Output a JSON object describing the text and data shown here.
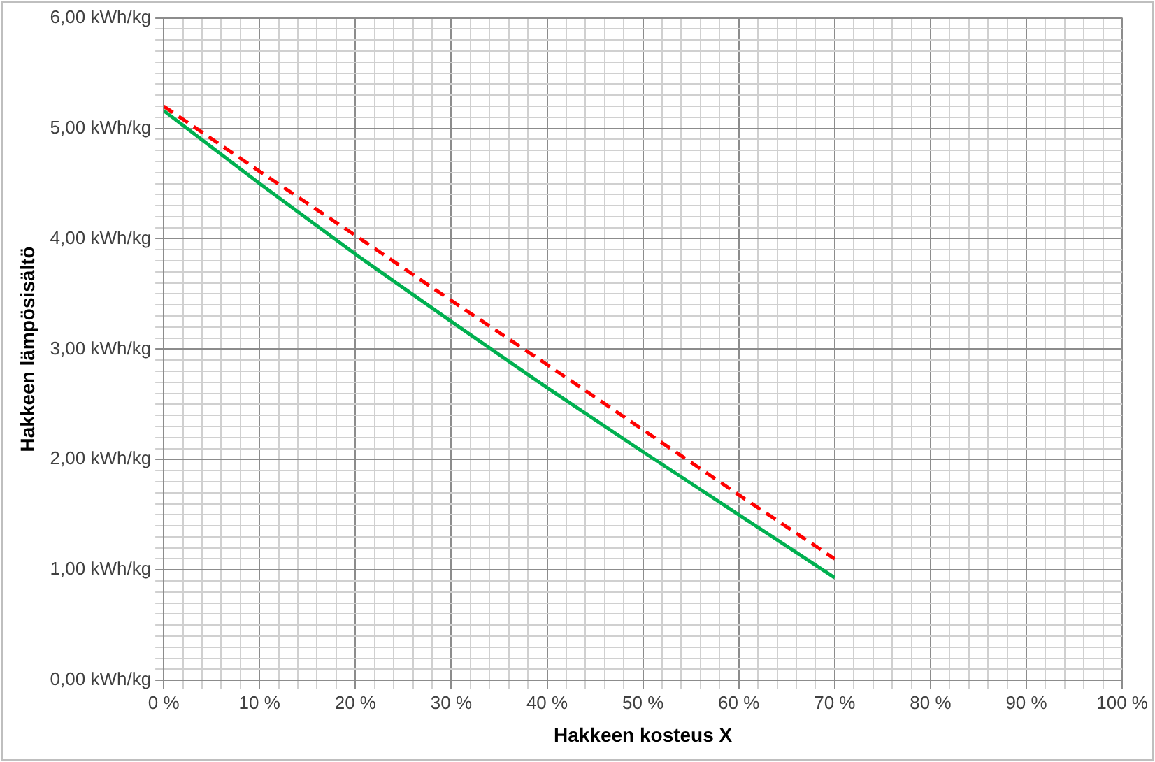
{
  "chart_data": {
    "type": "line",
    "xlabel": "Hakkeen kosteus X",
    "ylabel": "Hakkeen lämpösisältö",
    "x": [
      0,
      10,
      20,
      30,
      40,
      50,
      60,
      70
    ],
    "series": [
      {
        "color": "#ff0000",
        "line_style": "dashed",
        "values": [
          5.2,
          4.61,
          4.03,
          3.44,
          2.86,
          2.27,
          1.68,
          1.1
        ]
      },
      {
        "color": "#00b050",
        "line_style": "solid",
        "values": [
          5.16,
          4.5,
          3.86,
          3.25,
          2.65,
          2.07,
          1.5,
          0.93
        ]
      }
    ],
    "xlim": [
      0,
      100
    ],
    "xticks": [
      {
        "value": 0,
        "label": "0 %"
      },
      {
        "value": 2,
        "label": null
      },
      {
        "value": 4,
        "label": null
      },
      {
        "value": 6,
        "label": null
      },
      {
        "value": 8,
        "label": null
      },
      {
        "value": 10,
        "label": "10 %"
      },
      {
        "value": 12,
        "label": null
      },
      {
        "value": 14,
        "label": null
      },
      {
        "value": 16,
        "label": null
      },
      {
        "value": 18,
        "label": null
      },
      {
        "value": 20,
        "label": "20 %"
      },
      {
        "value": 22,
        "label": null
      },
      {
        "value": 24,
        "label": null
      },
      {
        "value": 26,
        "label": null
      },
      {
        "value": 28,
        "label": null
      },
      {
        "value": 30,
        "label": "30 %"
      },
      {
        "value": 32,
        "label": null
      },
      {
        "value": 34,
        "label": null
      },
      {
        "value": 36,
        "label": null
      },
      {
        "value": 38,
        "label": null
      },
      {
        "value": 40,
        "label": "40 %"
      },
      {
        "value": 42,
        "label": null
      },
      {
        "value": 44,
        "label": null
      },
      {
        "value": 46,
        "label": null
      },
      {
        "value": 48,
        "label": null
      },
      {
        "value": 50,
        "label": "50 %"
      },
      {
        "value": 52,
        "label": null
      },
      {
        "value": 54,
        "label": null
      },
      {
        "value": 56,
        "label": null
      },
      {
        "value": 58,
        "label": null
      },
      {
        "value": 60,
        "label": "60 %"
      },
      {
        "value": 62,
        "label": null
      },
      {
        "value": 64,
        "label": null
      },
      {
        "value": 66,
        "label": null
      },
      {
        "value": 68,
        "label": null
      },
      {
        "value": 70,
        "label": "70 %"
      },
      {
        "value": 72,
        "label": null
      },
      {
        "value": 74,
        "label": null
      },
      {
        "value": 76,
        "label": null
      },
      {
        "value": 78,
        "label": null
      },
      {
        "value": 80,
        "label": "80 %"
      },
      {
        "value": 82,
        "label": null
      },
      {
        "value": 84,
        "label": null
      },
      {
        "value": 86,
        "label": null
      },
      {
        "value": 88,
        "label": null
      },
      {
        "value": 90,
        "label": "90 %"
      },
      {
        "value": 92,
        "label": null
      },
      {
        "value": 94,
        "label": null
      },
      {
        "value": 96,
        "label": null
      },
      {
        "value": 98,
        "label": null
      },
      {
        "value": 100,
        "label": "100 %"
      }
    ],
    "ylim": [
      0,
      6
    ],
    "yticks": [
      {
        "value": 0,
        "label": "0,00 kWh/kg"
      },
      {
        "value": 0.1,
        "label": null
      },
      {
        "value": 0.2,
        "label": null
      },
      {
        "value": 0.3,
        "label": null
      },
      {
        "value": 0.4,
        "label": null
      },
      {
        "value": 0.5,
        "label": null
      },
      {
        "value": 0.6,
        "label": null
      },
      {
        "value": 0.7,
        "label": null
      },
      {
        "value": 0.8,
        "label": null
      },
      {
        "value": 0.9,
        "label": null
      },
      {
        "value": 1,
        "label": "1,00 kWh/kg"
      },
      {
        "value": 1.1,
        "label": null
      },
      {
        "value": 1.2,
        "label": null
      },
      {
        "value": 1.3,
        "label": null
      },
      {
        "value": 1.4,
        "label": null
      },
      {
        "value": 1.5,
        "label": null
      },
      {
        "value": 1.6,
        "label": null
      },
      {
        "value": 1.7,
        "label": null
      },
      {
        "value": 1.8,
        "label": null
      },
      {
        "value": 1.9,
        "label": null
      },
      {
        "value": 2,
        "label": "2,00 kWh/kg"
      },
      {
        "value": 2.1,
        "label": null
      },
      {
        "value": 2.2,
        "label": null
      },
      {
        "value": 2.3,
        "label": null
      },
      {
        "value": 2.4,
        "label": null
      },
      {
        "value": 2.5,
        "label": null
      },
      {
        "value": 2.6,
        "label": null
      },
      {
        "value": 2.7,
        "label": null
      },
      {
        "value": 2.8,
        "label": null
      },
      {
        "value": 2.9,
        "label": null
      },
      {
        "value": 3,
        "label": "3,00 kWh/kg"
      },
      {
        "value": 3.1,
        "label": null
      },
      {
        "value": 3.2,
        "label": null
      },
      {
        "value": 3.3,
        "label": null
      },
      {
        "value": 3.4,
        "label": null
      },
      {
        "value": 3.5,
        "label": null
      },
      {
        "value": 3.6,
        "label": null
      },
      {
        "value": 3.7,
        "label": null
      },
      {
        "value": 3.8,
        "label": null
      },
      {
        "value": 3.9,
        "label": null
      },
      {
        "value": 4,
        "label": "4,00 kWh/kg"
      },
      {
        "value": 4.1,
        "label": null
      },
      {
        "value": 4.2,
        "label": null
      },
      {
        "value": 4.3,
        "label": null
      },
      {
        "value": 4.4,
        "label": null
      },
      {
        "value": 4.5,
        "label": null
      },
      {
        "value": 4.6,
        "label": null
      },
      {
        "value": 4.7,
        "label": null
      },
      {
        "value": 4.8,
        "label": null
      },
      {
        "value": 4.9,
        "label": null
      },
      {
        "value": 5,
        "label": "5,00 kWh/kg"
      },
      {
        "value": 5.1,
        "label": null
      },
      {
        "value": 5.2,
        "label": null
      },
      {
        "value": 5.3,
        "label": null
      },
      {
        "value": 5.4,
        "label": null
      },
      {
        "value": 5.5,
        "label": null
      },
      {
        "value": 5.6,
        "label": null
      },
      {
        "value": 5.7,
        "label": null
      },
      {
        "value": 5.8,
        "label": null
      },
      {
        "value": 5.9,
        "label": null
      },
      {
        "value": 6,
        "label": "6,00 kWh/kg"
      }
    ],
    "grid": true,
    "legend": false,
    "marker": "none"
  }
}
